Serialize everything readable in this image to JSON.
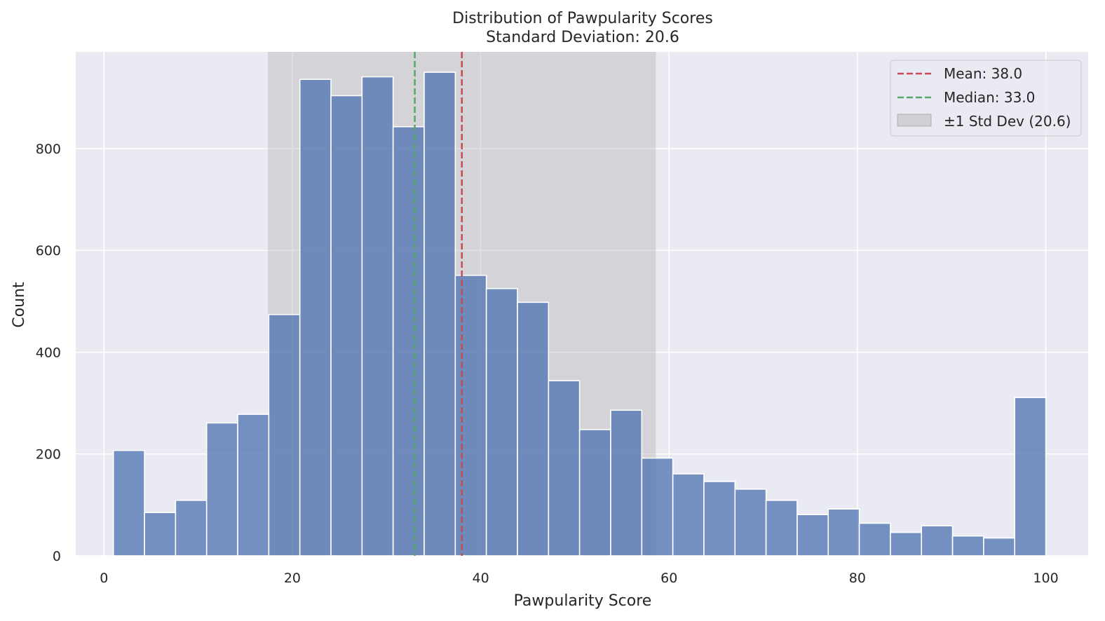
{
  "chart_data": {
    "type": "bar",
    "title": "Distribution of Pawpularity Scores",
    "subtitle": "Standard Deviation: 20.6",
    "xlabel": "Pawpularity Score",
    "ylabel": "Count",
    "xlim": [
      -3,
      104.5
    ],
    "ylim": [
      0,
      990
    ],
    "xticks": [
      0,
      20,
      40,
      60,
      80,
      100
    ],
    "yticks": [
      0,
      200,
      400,
      600,
      800
    ],
    "grid": true,
    "bin_edges": [
      1,
      4.3,
      7.6,
      10.9,
      14.2,
      17.5,
      20.8,
      24.1,
      27.4,
      30.7,
      34,
      37.3,
      40.6,
      43.9,
      47.2,
      50.5,
      53.8,
      57.1,
      60.4,
      63.7,
      67,
      70.3,
      73.6,
      76.9,
      80.2,
      83.5,
      86.8,
      90.1,
      93.4,
      96.7,
      100
    ],
    "counts": [
      207,
      85,
      109,
      261,
      278,
      474,
      936,
      904,
      941,
      843,
      950,
      551,
      525,
      498,
      344,
      248,
      286,
      192,
      161,
      146,
      131,
      109,
      81,
      92,
      64,
      46,
      59,
      39,
      35,
      311
    ],
    "bar_color": "#4c72b0",
    "mean": 38.0,
    "median": 33.0,
    "std": 20.6,
    "band": [
      17.4,
      58.6
    ],
    "legend_position": "upper right",
    "legend": [
      {
        "label": "Mean: 38.0",
        "style": "dashed",
        "color": "#c44e52"
      },
      {
        "label": "Median: 33.0",
        "style": "dashed",
        "color": "#55a868"
      },
      {
        "label": "±1 Std Dev (20.6)",
        "style": "patch",
        "color": "#b0b0b0"
      }
    ],
    "background_color": "#eaeaf2",
    "grid_color": "#ffffff"
  }
}
